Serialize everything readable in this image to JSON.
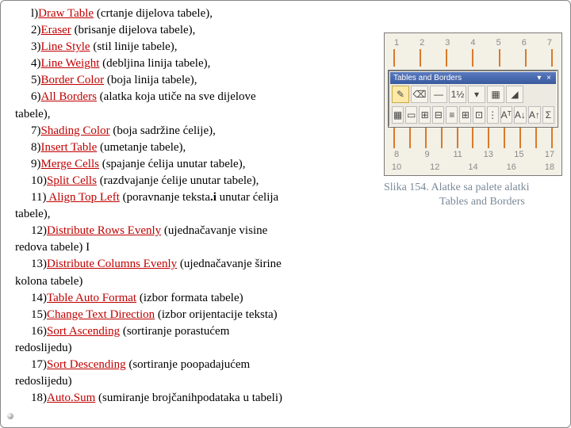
{
  "items": [
    {
      "n": "l)",
      "term": "Draw Table",
      "desc": " (crtanje dijelova tabele),"
    },
    {
      "n": "2)",
      "term": "Eraser",
      "desc": " (brisanje dijelova tabele),"
    },
    {
      "n": "3)",
      "term": "Line Style",
      "desc": " (stil linije tabele),"
    },
    {
      "n": "4)",
      "term": "Line Weight",
      "desc": " (debljina linija tabele),"
    },
    {
      "n": "5)",
      "term": "Border Color",
      "desc": " (boja linija tabele),"
    },
    {
      "n": "6)",
      "term": "All Borders",
      "desc": " (alatka koja utiče na sve dijelove"
    },
    {
      "cont": "tabele),"
    },
    {
      "n": "7)",
      "term": "Shading Color",
      "desc": " (boja sadržine ćelije),"
    },
    {
      "n": "8)",
      "term": "Insert Table",
      "desc": " (umetanje tabele),"
    },
    {
      "n": "9)",
      "term": "Merge Cells",
      "desc": " (spajanje ćelija unutar tabele),"
    },
    {
      "n": "10)",
      "term": "Split Cells",
      "desc": " (razdvajanje ćelije unutar tabele),"
    },
    {
      "n": "11)",
      "term": " Align Top Left",
      "desc": " (poravnanje teksta",
      "bolddot": ".i",
      "desc2": " unutar ćelija"
    },
    {
      "cont": "tabele),"
    },
    {
      "n": "12)",
      "term": "Distribute Rows Evenly",
      "desc": " (ujednačavanje visine"
    },
    {
      "cont": "redova tabele) I"
    },
    {
      "n": "13)",
      "term": "Distribute Columns Evenly",
      "desc": " (ujednačavanje širine"
    },
    {
      "cont": "kolona tabele)"
    },
    {
      "n": "14)",
      "term": "Table Auto Format",
      "desc": " (izbor formata tabele)"
    },
    {
      "n": "15)",
      "term": "Change Text Direction",
      "desc": " (izbor orijentacije teksta)"
    },
    {
      "n": "16)",
      "term": "Sort Ascending",
      "desc": " (sortiranje porastućem"
    },
    {
      "cont": "redoslijedu)"
    },
    {
      "n": "17)",
      "term": "Sort Descending",
      "desc": " (sortiranje poopadajućem"
    },
    {
      "cont": "redoslijedu)"
    },
    {
      "n": "18)",
      "term": "Auto.Sum",
      "desc": " (sumiranje brojčanihpodataka u tabeli)"
    }
  ],
  "fig": {
    "top_numbers": [
      "1",
      "2",
      "3",
      "4",
      "5",
      "6",
      "7"
    ],
    "toolbar_title": "Tables and Borders",
    "row1_icons": [
      "✎",
      "⌫",
      "—",
      "1½",
      "▾",
      "▦",
      "◢"
    ],
    "row2_icons": [
      "▦",
      "▭",
      "⊞",
      "⊟",
      "≡",
      "⊞",
      "⊡",
      "⋮",
      "Aᵀ",
      "A↓",
      "A↑",
      "Σ"
    ],
    "bottom_numbers_a": [
      "8",
      "9",
      "11",
      "13",
      "15",
      "17"
    ],
    "bottom_numbers_b": [
      "10",
      "12",
      "14",
      "16",
      "18"
    ],
    "caption_line1": "Slika 154.  Alatke sa palete alatki",
    "caption_line2": "Tables and Borders"
  }
}
